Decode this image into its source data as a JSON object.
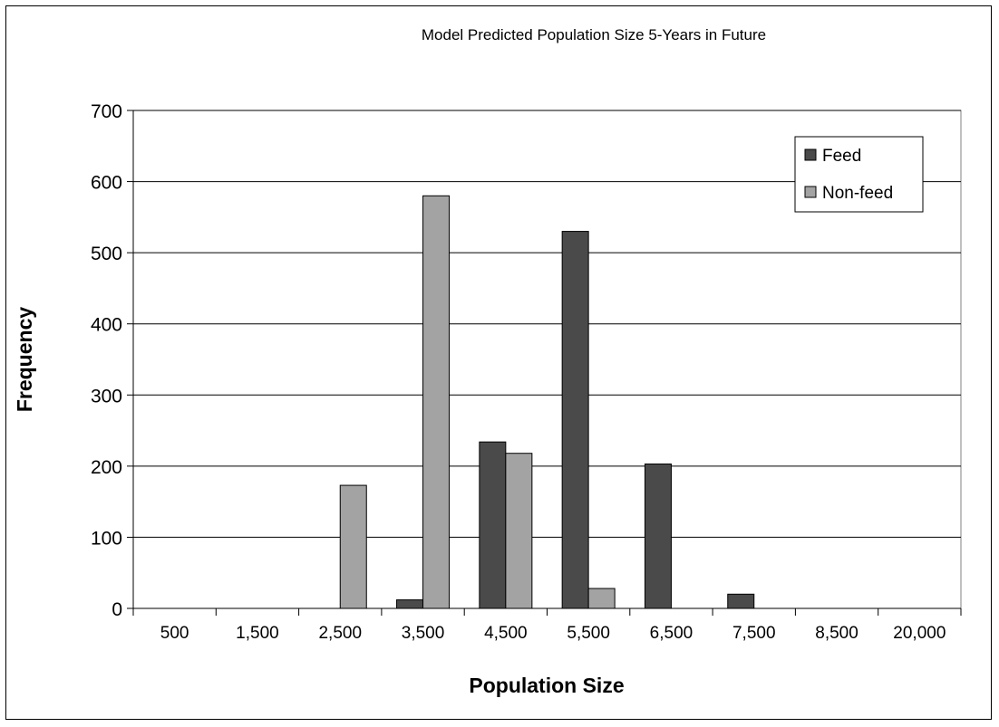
{
  "chart_data": {
    "type": "bar",
    "title": "Model Predicted Population Size 5-Years in Future",
    "xlabel": "Population Size",
    "ylabel": "Frequency",
    "categories": [
      "500",
      "1,500",
      "2,500",
      "3,500",
      "4,500",
      "5,500",
      "6,500",
      "7,500",
      "8,500",
      "20,000"
    ],
    "series": [
      {
        "name": "Feed",
        "color": "#4a4a4a",
        "values": [
          0,
          0,
          0,
          12,
          234,
          530,
          203,
          20,
          0,
          0
        ]
      },
      {
        "name": "Non-feed",
        "color": "#a3a3a3",
        "values": [
          0,
          0,
          173,
          580,
          218,
          28,
          0,
          0,
          0,
          0
        ]
      }
    ],
    "ylim": [
      0,
      700
    ],
    "yticks": [
      0,
      100,
      200,
      300,
      400,
      500,
      600,
      700
    ],
    "grid": true,
    "legend": "top-right"
  }
}
